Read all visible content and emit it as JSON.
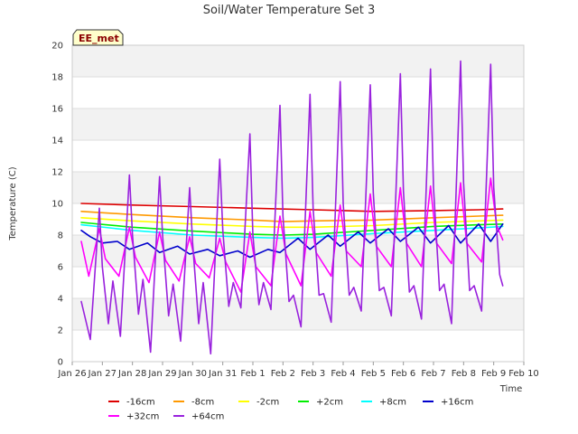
{
  "chart_data": {
    "type": "line",
    "title": "Soil/Water Temperature Set 3",
    "xlabel": "Time",
    "ylabel": "Temperature (C)",
    "badge": "EE_met",
    "ylim": [
      0,
      20
    ],
    "yticks": [
      0,
      2,
      4,
      6,
      8,
      10,
      12,
      14,
      16,
      18,
      20
    ],
    "xlim": [
      0,
      15
    ],
    "xticks": [
      {
        "value": 0,
        "label": "Jan 26"
      },
      {
        "value": 1,
        "label": "Jan 27"
      },
      {
        "value": 2,
        "label": "Jan 28"
      },
      {
        "value": 3,
        "label": "Jan 29"
      },
      {
        "value": 4,
        "label": "Jan 30"
      },
      {
        "value": 5,
        "label": "Jan 31"
      },
      {
        "value": 6,
        "label": "Feb 1"
      },
      {
        "value": 7,
        "label": "Feb 2"
      },
      {
        "value": 8,
        "label": "Feb 3"
      },
      {
        "value": 9,
        "label": "Feb 4"
      },
      {
        "value": 10,
        "label": "Feb 5"
      },
      {
        "value": 11,
        "label": "Feb 6"
      },
      {
        "value": 12,
        "label": "Feb 7"
      },
      {
        "value": 13,
        "label": "Feb 8"
      },
      {
        "value": 14,
        "label": "Feb 9"
      },
      {
        "value": 15,
        "label": "Feb 10"
      }
    ],
    "grid": true,
    "legend_position": "bottom",
    "series": [
      {
        "name": "-16cm",
        "color": "#dd0000",
        "x": [
          0.3,
          2,
          4,
          6,
          8,
          10,
          12,
          13.5,
          14.3
        ],
        "y": [
          10.0,
          9.9,
          9.8,
          9.7,
          9.6,
          9.5,
          9.55,
          9.6,
          9.65
        ]
      },
      {
        "name": "-8cm",
        "color": "#ff9900",
        "x": [
          0.3,
          2,
          4,
          6,
          7,
          8,
          10,
          12,
          13.5,
          14.3
        ],
        "y": [
          9.5,
          9.3,
          9.1,
          8.95,
          8.85,
          8.9,
          8.95,
          9.1,
          9.2,
          9.25
        ]
      },
      {
        "name": "-2cm",
        "color": "#ffff00",
        "x": [
          0.3,
          2,
          4,
          6,
          7,
          8,
          10,
          12,
          13.5,
          14.3
        ],
        "y": [
          9.1,
          8.9,
          8.7,
          8.55,
          8.5,
          8.5,
          8.6,
          8.8,
          8.9,
          8.95
        ]
      },
      {
        "name": "+2cm",
        "color": "#00ee00",
        "x": [
          0.3,
          2,
          4,
          6,
          7,
          8,
          10,
          12,
          13.5,
          14.3
        ],
        "y": [
          8.8,
          8.5,
          8.25,
          8.05,
          8.0,
          8.05,
          8.3,
          8.55,
          8.65,
          8.7
        ]
      },
      {
        "name": "+8cm",
        "color": "#00ffff",
        "x": [
          0.3,
          2,
          4,
          6,
          7,
          8,
          10,
          12,
          13.5,
          14.3
        ],
        "y": [
          8.65,
          8.3,
          8.0,
          7.85,
          7.8,
          7.85,
          8.1,
          8.3,
          8.45,
          8.55
        ]
      },
      {
        "name": "+16cm",
        "color": "#0000cc",
        "x": [
          0.3,
          0.6,
          1.0,
          1.5,
          1.9,
          2.5,
          2.9,
          3.5,
          3.9,
          4.5,
          4.9,
          5.5,
          5.9,
          6.5,
          6.9,
          7.5,
          7.9,
          8.5,
          8.9,
          9.5,
          9.9,
          10.5,
          10.9,
          11.5,
          11.9,
          12.5,
          12.9,
          13.5,
          13.9,
          14.3
        ],
        "y": [
          8.3,
          7.9,
          7.5,
          7.6,
          7.1,
          7.5,
          6.9,
          7.3,
          6.8,
          7.1,
          6.7,
          7.0,
          6.6,
          7.1,
          6.9,
          7.8,
          7.1,
          8.0,
          7.3,
          8.2,
          7.5,
          8.4,
          7.6,
          8.5,
          7.5,
          8.6,
          7.5,
          8.7,
          7.6,
          8.7
        ]
      },
      {
        "name": "+32cm",
        "color": "#ff00ff",
        "x": [
          0.3,
          0.55,
          0.9,
          1.1,
          1.55,
          1.9,
          2.1,
          2.55,
          2.9,
          3.1,
          3.55,
          3.9,
          4.1,
          4.55,
          4.9,
          5.1,
          5.6,
          5.9,
          6.1,
          6.6,
          6.9,
          7.1,
          7.6,
          7.9,
          8.1,
          8.6,
          8.9,
          9.1,
          9.6,
          9.9,
          10.1,
          10.6,
          10.9,
          11.1,
          11.6,
          11.9,
          12.1,
          12.6,
          12.9,
          13.1,
          13.6,
          13.9,
          14.1,
          14.3
        ],
        "y": [
          7.6,
          5.4,
          8.4,
          6.5,
          5.4,
          8.5,
          6.6,
          5.0,
          8.2,
          6.4,
          5.1,
          7.9,
          6.2,
          5.3,
          7.8,
          6.3,
          4.4,
          8.2,
          6.0,
          4.8,
          9.2,
          6.8,
          4.8,
          9.5,
          6.9,
          5.4,
          9.9,
          7.0,
          6.0,
          10.6,
          7.3,
          6.0,
          11.0,
          7.5,
          6.0,
          11.1,
          7.5,
          6.2,
          11.3,
          7.5,
          6.3,
          11.6,
          8.6,
          7.7
        ]
      },
      {
        "name": "+64cm",
        "color": "#9922dd",
        "x": [
          0.3,
          0.6,
          0.9,
          1.0,
          1.2,
          1.35,
          1.6,
          1.9,
          2.0,
          2.2,
          2.35,
          2.6,
          2.9,
          3.0,
          3.2,
          3.35,
          3.6,
          3.9,
          4.0,
          4.2,
          4.35,
          4.6,
          4.9,
          5.0,
          5.2,
          5.35,
          5.6,
          5.9,
          6.0,
          6.2,
          6.35,
          6.6,
          6.9,
          7.0,
          7.2,
          7.35,
          7.6,
          7.9,
          8.0,
          8.2,
          8.35,
          8.6,
          8.9,
          9.0,
          9.2,
          9.35,
          9.6,
          9.9,
          10.0,
          10.2,
          10.35,
          10.6,
          10.9,
          11.0,
          11.2,
          11.35,
          11.6,
          11.9,
          12.0,
          12.2,
          12.35,
          12.6,
          12.9,
          13.0,
          13.2,
          13.35,
          13.6,
          13.9,
          14.0,
          14.2,
          14.3
        ],
        "y": [
          3.8,
          1.4,
          9.7,
          6.0,
          2.4,
          5.1,
          1.6,
          11.8,
          8.0,
          3.0,
          5.2,
          0.6,
          11.7,
          8.0,
          2.9,
          4.9,
          1.3,
          11.0,
          7.5,
          2.4,
          5.0,
          0.5,
          12.8,
          8.3,
          3.5,
          5.0,
          3.4,
          14.4,
          8.0,
          3.6,
          5.0,
          3.3,
          16.2,
          9.2,
          3.8,
          4.2,
          2.2,
          16.9,
          9.7,
          4.2,
          4.3,
          2.5,
          17.7,
          10.0,
          4.2,
          4.7,
          3.2,
          17.5,
          10.7,
          4.5,
          4.7,
          2.9,
          18.2,
          10.8,
          4.4,
          4.8,
          2.7,
          18.5,
          11.0,
          4.5,
          4.9,
          2.4,
          19.0,
          11.3,
          4.5,
          4.8,
          3.2,
          18.8,
          11.0,
          5.5,
          4.8
        ]
      }
    ]
  }
}
